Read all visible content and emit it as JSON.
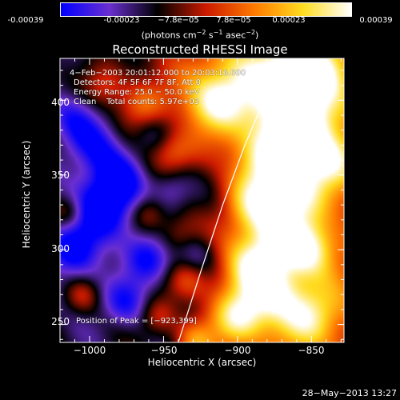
{
  "colorbar": {
    "ticks": [
      "-0.00039",
      "-0.00023",
      "−7.8e−05",
      "7.8e−05",
      "0.00023",
      "0.00039"
    ],
    "units_base": "(photons cm",
    "units_sup1": "−2",
    "units_mid1": " s",
    "units_sup2": "−1",
    "units_mid2": " asec",
    "units_sup3": "−2",
    "units_end": ")"
  },
  "annotations": {
    "time": "4−Feb−2003 20:01:12.000 to 20:03:16.000",
    "detectors": "Detectors: 4F 5F 6F 7F 8F, Att 0",
    "energy": "Energy Range: 25.0 − 50.0 keV",
    "clean": "Clean    Total counts: 5.97e+03",
    "peak": "Position of Peak = [−923,399]"
  },
  "footer_date": "28−May−2013 13:27",
  "chart_data": {
    "type": "heatmap",
    "title": "Reconstructed RHESSI Image",
    "xlabel": "Heliocentric X (arcsec)",
    "ylabel": "Heliocentric Y (arcsec)",
    "xlim": [
      -1020,
      -828
    ],
    "ylim": [
      238,
      428
    ],
    "xticks": [
      -1000,
      -950,
      -900,
      -850
    ],
    "xtick_labels": [
      "−1000",
      "−950",
      "−900",
      "−850"
    ],
    "yticks": [
      250,
      300,
      350,
      400
    ],
    "ytick_labels": [
      "250",
      "300",
      "350",
      "400"
    ],
    "color_range": [
      -0.00039,
      0.00039
    ],
    "colormap": [
      "#0000ff",
      "#6a2fd0",
      "#000000",
      "#cc1a00",
      "#ff7a00",
      "#ffdc20",
      "#ffffff"
    ],
    "peak": [
      -923,
      399
    ],
    "limb_curve": [
      [
        -940,
        238
      ],
      [
        -925,
        285
      ],
      [
        -910,
        330
      ],
      [
        -895,
        370
      ],
      [
        -880,
        405
      ],
      [
        -870,
        428
      ]
    ],
    "sources": [
      [
        -900,
        410,
        38,
        1.0
      ],
      [
        -868,
        415,
        22,
        0.95
      ],
      [
        -915,
        400,
        14,
        0.85
      ],
      [
        -855,
        380,
        18,
        0.85
      ],
      [
        -880,
        360,
        16,
        0.7
      ],
      [
        -860,
        340,
        14,
        0.8
      ],
      [
        -890,
        330,
        14,
        0.75
      ],
      [
        -870,
        310,
        16,
        0.85
      ],
      [
        -890,
        290,
        14,
        0.8
      ],
      [
        -850,
        300,
        12,
        0.75
      ],
      [
        -875,
        270,
        16,
        0.9
      ],
      [
        -900,
        255,
        12,
        0.85
      ],
      [
        -850,
        255,
        14,
        0.75
      ],
      [
        -850,
        420,
        12,
        0.7
      ],
      [
        -838,
        360,
        12,
        0.65
      ],
      [
        -935,
        280,
        10,
        0.6
      ],
      [
        -940,
        310,
        10,
        0.5
      ],
      [
        -965,
        395,
        12,
        0.6
      ],
      [
        -990,
        410,
        10,
        0.55
      ],
      [
        -960,
        325,
        9,
        0.5
      ],
      [
        -945,
        365,
        10,
        0.55
      ],
      [
        -1015,
        325,
        8,
        0.45
      ],
      [
        -1005,
        270,
        8,
        0.4
      ],
      [
        -955,
        255,
        9,
        0.5
      ],
      [
        -930,
        240,
        9,
        0.55
      ],
      [
        -990,
        330,
        16,
        -0.95
      ],
      [
        -995,
        370,
        14,
        -0.6
      ],
      [
        -1012,
        300,
        14,
        -0.7
      ],
      [
        -960,
        295,
        12,
        -0.65
      ],
      [
        -975,
        265,
        12,
        -0.55
      ],
      [
        -945,
        340,
        10,
        -0.5
      ],
      [
        -980,
        350,
        12,
        -0.45
      ],
      [
        -1012,
        390,
        12,
        -0.45
      ],
      [
        -930,
        295,
        10,
        -0.4
      ],
      [
        -955,
        380,
        10,
        -0.35
      ]
    ]
  }
}
